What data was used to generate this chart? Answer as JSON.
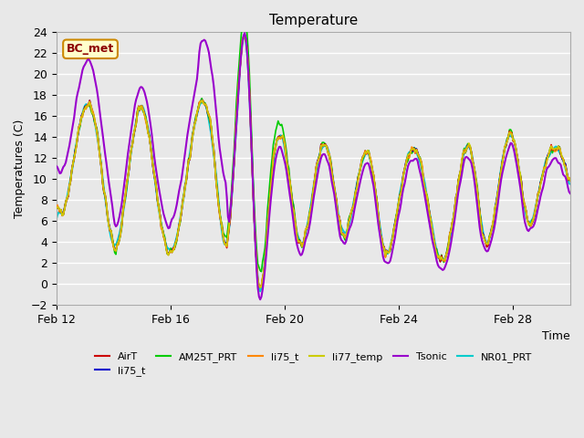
{
  "title": "Temperature",
  "xlabel": "Time",
  "ylabel": "Temperatures (C)",
  "ylim": [
    -2,
    24
  ],
  "xlim": [
    0,
    18
  ],
  "yticks": [
    -2,
    0,
    2,
    4,
    6,
    8,
    10,
    12,
    14,
    16,
    18,
    20,
    22,
    24
  ],
  "xtick_labels": [
    "Feb 12",
    "Feb 16",
    "Feb 20",
    "Feb 24",
    "Feb 28"
  ],
  "xtick_positions": [
    0,
    4,
    8,
    12,
    16
  ],
  "annotation_text": "BC_met",
  "background_color": "#e8e8e8",
  "plot_bg_color": "#e8e8e8",
  "grid_color": "white",
  "series": [
    {
      "label": "AirT",
      "color": "#cc0000",
      "lw": 1.2,
      "zorder": 5
    },
    {
      "label": "li75_t",
      "color": "#0000cc",
      "lw": 1.2,
      "zorder": 4
    },
    {
      "label": "AM25T_PRT",
      "color": "#00cc00",
      "lw": 1.2,
      "zorder": 3
    },
    {
      "label": "li75_t",
      "color": "#ff8800",
      "lw": 1.2,
      "zorder": 6
    },
    {
      "label": "li77_temp",
      "color": "#cccc00",
      "lw": 1.2,
      "zorder": 7
    },
    {
      "label": "Tsonic",
      "color": "#9900cc",
      "lw": 1.5,
      "zorder": 8
    },
    {
      "label": "NR01_PRT",
      "color": "#00cccc",
      "lw": 1.5,
      "zorder": 2
    }
  ]
}
